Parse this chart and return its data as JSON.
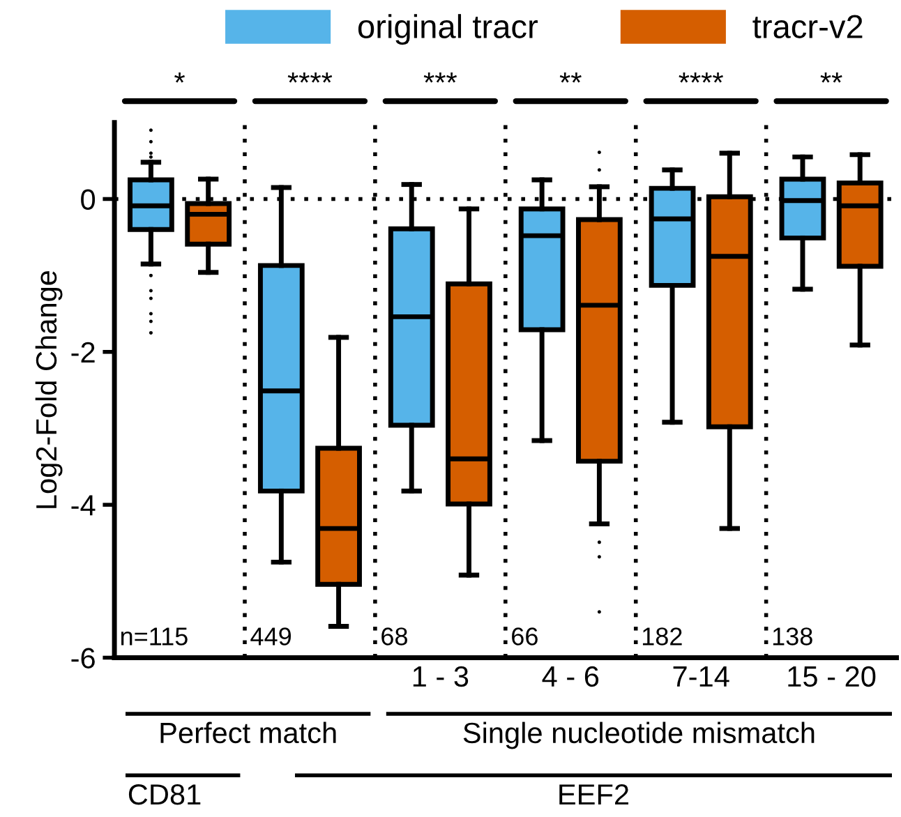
{
  "chart_data": {
    "type": "box",
    "ylabel": "Log2-Fold Change",
    "categories": [
      null,
      null,
      "1 - 3",
      "4 - 6",
      "7-14",
      "15 - 20"
    ],
    "series": [
      {
        "name": "original tracr",
        "color": "#56b4e9",
        "boxes": [
          {
            "low": -0.85,
            "q1": -0.4,
            "median": -0.09,
            "q3": 0.25,
            "high": 0.48,
            "outliers": [
              0.9,
              0.75,
              0.6,
              0.55,
              -1.0,
              -1.2,
              -1.3,
              -1.5,
              -1.6,
              -1.75
            ]
          },
          {
            "low": -4.75,
            "q1": -3.82,
            "median": -2.51,
            "q3": -0.87,
            "high": 0.15
          },
          {
            "low": -3.82,
            "q1": -2.96,
            "median": -1.54,
            "q3": -0.39,
            "high": 0.19
          },
          {
            "low": -3.16,
            "q1": -1.71,
            "median": -0.48,
            "q3": -0.13,
            "high": 0.25
          },
          {
            "low": -2.92,
            "q1": -1.13,
            "median": -0.26,
            "q3": 0.14,
            "high": 0.38
          },
          {
            "low": -1.18,
            "q1": -0.51,
            "median": -0.02,
            "q3": 0.26,
            "high": 0.55
          }
        ]
      },
      {
        "name": "tracr-v2",
        "color": "#d55e00",
        "boxes": [
          {
            "low": -0.96,
            "q1": -0.59,
            "median": -0.2,
            "q3": -0.06,
            "high": 0.26
          },
          {
            "low": -5.59,
            "q1": -5.04,
            "median": -4.31,
            "q3": -3.26,
            "high": -1.81
          },
          {
            "low": -4.92,
            "q1": -3.99,
            "median": -3.4,
            "q3": -1.11,
            "high": -0.13
          },
          {
            "low": -4.25,
            "q1": -3.43,
            "median": -1.39,
            "q3": -0.27,
            "high": 0.16,
            "outliers": [
              0.61,
              0.38,
              -4.49,
              -4.68,
              -5.4
            ]
          },
          {
            "low": -4.31,
            "q1": -2.98,
            "median": -0.75,
            "q3": 0.03,
            "high": 0.6
          },
          {
            "low": -1.91,
            "q1": -0.88,
            "median": -0.09,
            "q3": 0.21,
            "high": 0.58
          }
        ]
      }
    ],
    "ylim": [
      -6,
      1
    ],
    "yticks": [
      -6,
      -4,
      -2,
      0
    ],
    "ref_lines": [
      {
        "axis": "y",
        "value": 0,
        "line_style": "dotted"
      }
    ],
    "annotations": [
      "*",
      "****",
      "***",
      "**",
      "****",
      "**",
      "n=115",
      "449",
      "68",
      "66",
      "182",
      "138",
      "Perfect match",
      "Single nucleotide mismatch",
      "CD81",
      "EEF2"
    ],
    "legend": "top",
    "grid": false
  }
}
